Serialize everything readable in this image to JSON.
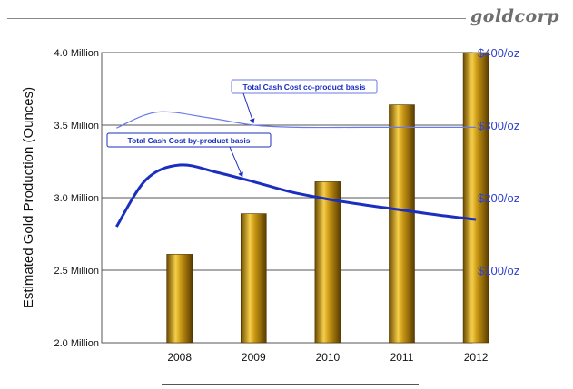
{
  "brand": {
    "logo_text": "goldcorp"
  },
  "chart_data": {
    "type": "bar",
    "categories": [
      "2008",
      "2009",
      "2010",
      "2011",
      "2012"
    ],
    "values": [
      2.61,
      2.89,
      3.11,
      3.64,
      4.0
    ],
    "ylabel": "Estimated Gold Production (Ounces)",
    "ylim": [
      2.0,
      4.0
    ],
    "y_ticks": [
      {
        "value": 2.0,
        "label": "2.0 Million"
      },
      {
        "value": 2.5,
        "label": "2.5 Million"
      },
      {
        "value": 3.0,
        "label": "3.0 Million"
      },
      {
        "value": 3.5,
        "label": "3.5 Million"
      },
      {
        "value": 4.0,
        "label": "4.0 Million"
      }
    ],
    "y2lim": [
      0,
      400
    ],
    "y2_ticks": [
      {
        "value": 100,
        "label": "$100/oz"
      },
      {
        "value": 200,
        "label": "$200/oz"
      },
      {
        "value": 300,
        "label": "$300/oz"
      },
      {
        "value": 400,
        "label": "$400/oz"
      }
    ],
    "grid": true,
    "bar_color": "#c89614",
    "line_series": [
      {
        "name": "Total Cash Cost  co-product basis",
        "axis": "right",
        "color": "#6a7ae6",
        "stroke": "thin",
        "points": [
          [
            2007.15,
            296
          ],
          [
            2007.7,
            318
          ],
          [
            2008.4,
            310
          ],
          [
            2009.0,
            300
          ],
          [
            2009.6,
            297
          ],
          [
            2010.5,
            297
          ],
          [
            2011.5,
            297
          ],
          [
            2012.0,
            297
          ]
        ]
      },
      {
        "name": "Total Cash Cost  by-product basis",
        "axis": "right",
        "color": "#1a2fc0",
        "stroke": "thick",
        "points": [
          [
            2007.15,
            160
          ],
          [
            2007.55,
            225
          ],
          [
            2008.0,
            245
          ],
          [
            2008.5,
            235
          ],
          [
            2009.0,
            222
          ],
          [
            2009.5,
            208
          ],
          [
            2010.0,
            198
          ],
          [
            2010.5,
            190
          ],
          [
            2011.0,
            183
          ],
          [
            2011.5,
            176
          ],
          [
            2012.0,
            170
          ]
        ]
      }
    ]
  }
}
